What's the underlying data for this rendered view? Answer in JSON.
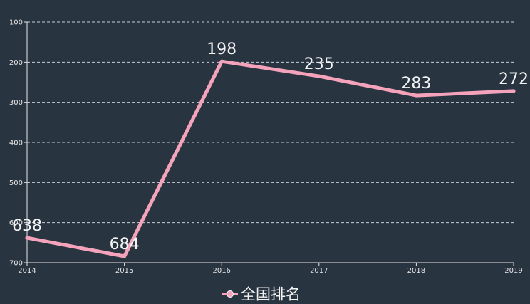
{
  "chart_data": {
    "type": "line",
    "x": [
      "2014",
      "2015",
      "2016",
      "2017",
      "2018",
      "2019"
    ],
    "series": [
      {
        "name": "全国排名",
        "values": [
          638,
          684,
          198,
          235,
          283,
          272
        ],
        "color": "#f4a3bb"
      }
    ],
    "y_ticks": [
      "100",
      "200",
      "300",
      "400",
      "500",
      "600",
      "700"
    ],
    "ylim": [
      100,
      700
    ],
    "y_inverted": true,
    "grid": true,
    "grid_style": "dashed",
    "legend_position": "bottom-center",
    "background": "#293441"
  }
}
